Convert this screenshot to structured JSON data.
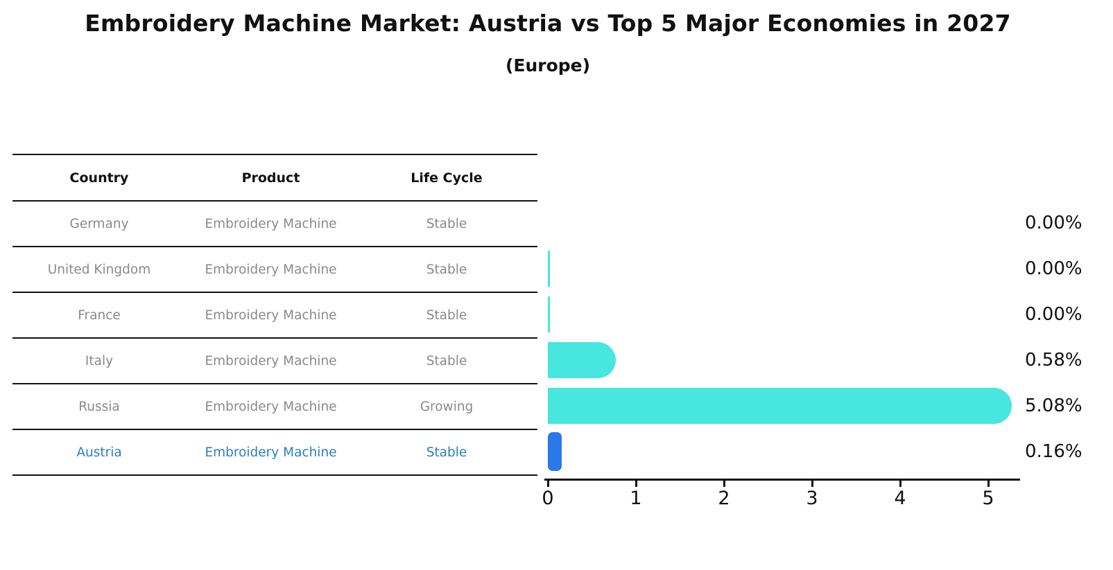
{
  "title": "Embroidery Machine Market: Austria vs Top 5 Major Economies in 2027",
  "subtitle": "(Europe)",
  "table": {
    "headers": [
      "Country",
      "Product",
      "Life Cycle"
    ],
    "rows": [
      {
        "country": "Germany",
        "product": "Embroidery Machine",
        "life_cycle": "Stable",
        "value_label": "0.00%",
        "highlight": false,
        "zero_bar_visible": false
      },
      {
        "country": "United Kingdom",
        "product": "Embroidery Machine",
        "life_cycle": "Stable",
        "value_label": "0.00%",
        "highlight": false,
        "zero_bar_visible": true
      },
      {
        "country": "France",
        "product": "Embroidery Machine",
        "life_cycle": "Stable",
        "value_label": "0.00%",
        "highlight": false,
        "zero_bar_visible": true
      },
      {
        "country": "Italy",
        "product": "Embroidery Machine",
        "life_cycle": "Stable",
        "value_label": "0.58%",
        "highlight": false,
        "zero_bar_visible": true
      },
      {
        "country": "Russia",
        "product": "Embroidery Machine",
        "life_cycle": "Growing",
        "value_label": "5.08%",
        "highlight": false,
        "zero_bar_visible": true
      },
      {
        "country": "Austria",
        "product": "Embroidery Machine",
        "life_cycle": "Stable",
        "value_label": "0.16%",
        "highlight": true,
        "zero_bar_visible": true
      }
    ]
  },
  "chart_data": {
    "type": "bar",
    "orientation": "horizontal",
    "title": "Embroidery Machine Market: Austria vs Top 5 Major Economies in 2027",
    "subtitle": "(Europe)",
    "categories": [
      "Germany",
      "United Kingdom",
      "France",
      "Italy",
      "Russia",
      "Austria"
    ],
    "values": [
      0.0,
      0.0,
      0.0,
      0.58,
      5.08,
      0.16
    ],
    "value_labels": [
      "0.00%",
      "0.00%",
      "0.00%",
      "0.58%",
      "5.08%",
      "0.16%"
    ],
    "xlabel": "",
    "ylabel": "",
    "xlim": [
      0,
      5.35
    ],
    "xticks": [
      "0",
      "1",
      "2",
      "3",
      "4",
      "5"
    ],
    "grid": false,
    "legend": false,
    "highlight_category": "Austria"
  },
  "colors": {
    "bar_primary": "#47e6de",
    "bar_highlight": "#2979e8",
    "highlight_text": "#2e7ebd",
    "muted_text": "#8a8a8a",
    "ink": "#111111"
  }
}
